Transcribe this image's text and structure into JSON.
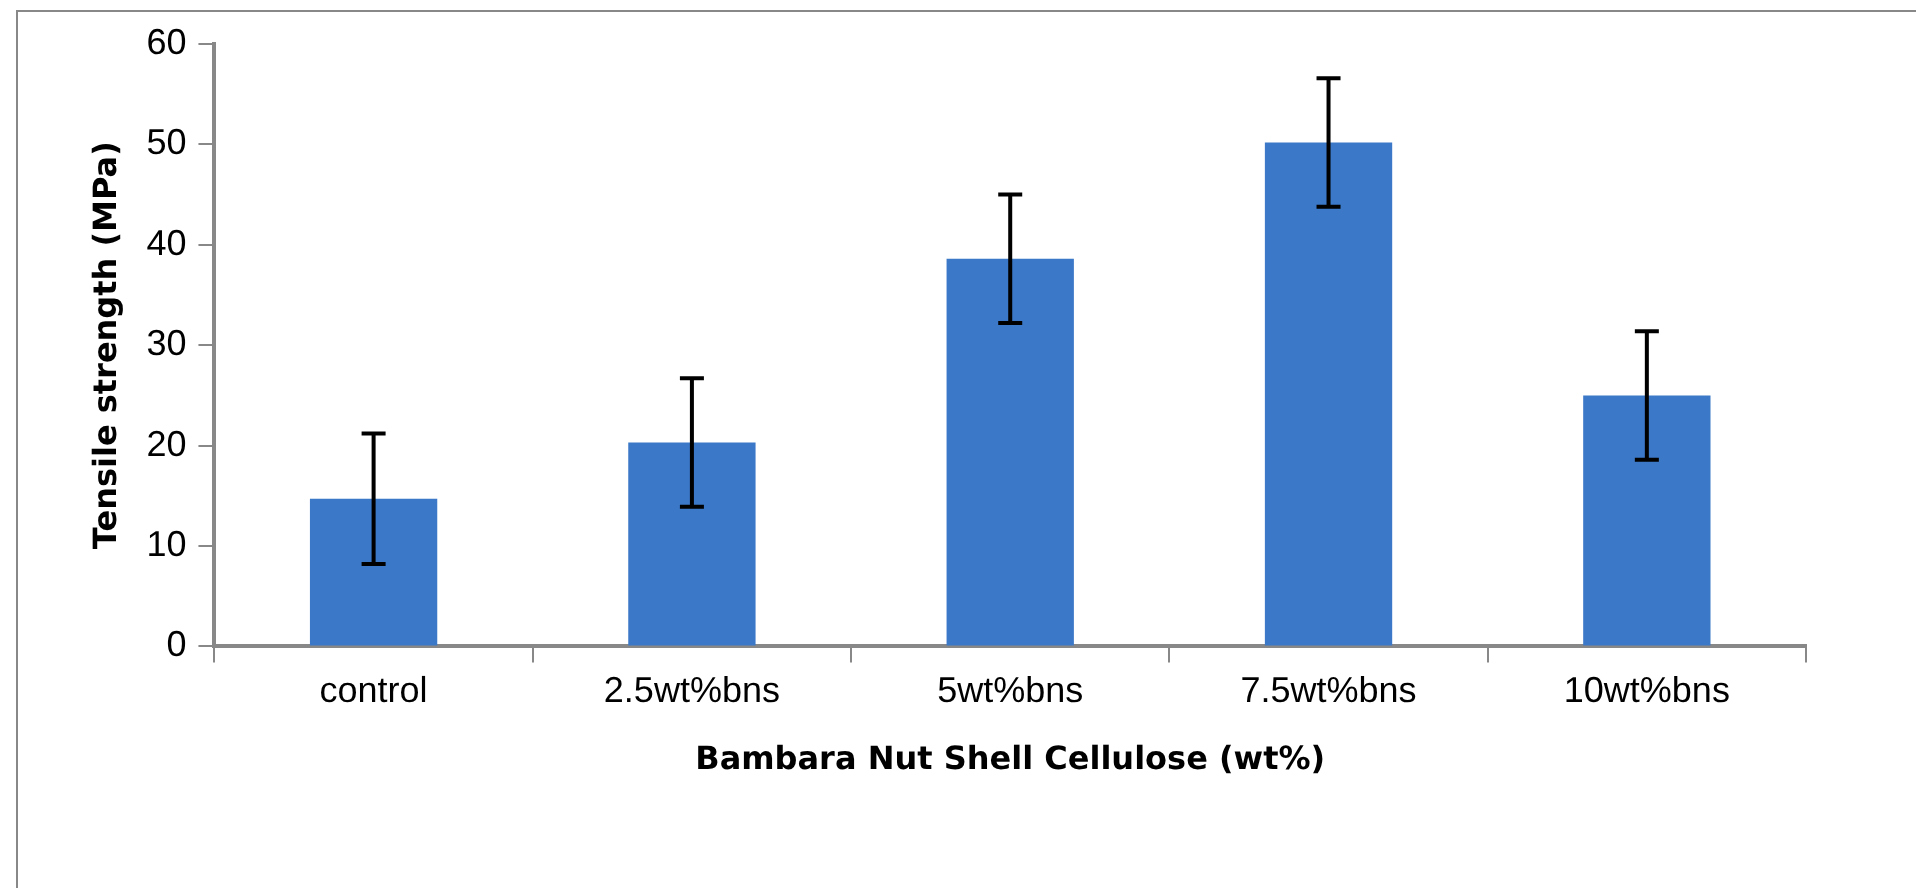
{
  "chart_data": {
    "type": "bar",
    "xlabel": "Bambara Nut Shell Cellulose (wt%)",
    "ylabel": "Tensile strength (MPa)",
    "categories": [
      "control",
      "2.5wt%bns",
      "5wt%bns",
      "7.5wt%bns",
      "10wt%bns"
    ],
    "values": [
      14.7,
      20.3,
      38.6,
      50.2,
      25.0
    ],
    "errors": [
      6.5,
      6.4,
      6.4,
      6.4,
      6.4
    ],
    "color": "#3b78c8",
    "ylim": [
      0,
      60
    ],
    "yticks": [
      0,
      10,
      20,
      30,
      40,
      50,
      60
    ],
    "grid": false,
    "legend": false
  }
}
